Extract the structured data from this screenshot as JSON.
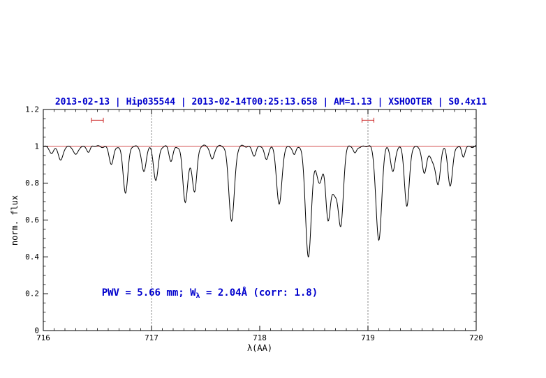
{
  "page": {
    "background": "#ffffff"
  },
  "chart_data": {
    "type": "line",
    "title": "2013-02-13 | Hip035544 | 2013-02-14T00:25:13.658 | AM=1.13 | XSHOOTER | S0.4x11",
    "title_color": "#0000cd",
    "xlabel": "λ(AA)",
    "ylabel": "norm. flux",
    "xlim": [
      716,
      720
    ],
    "ylim": [
      0,
      1.2
    ],
    "xticks": [
      "716",
      "717",
      "718",
      "719",
      "720"
    ],
    "yticks": [
      "0",
      "0.2",
      "0.4",
      "0.6",
      "0.8",
      "1",
      "1.2"
    ],
    "x_minor_step": 0.1,
    "y_minor_step": 0.05,
    "grid": false,
    "legend": "none",
    "line_color": "#000000",
    "continuum": {
      "level": 1.0,
      "color": "#cc3333"
    },
    "vlines": {
      "x": [
        717,
        719
      ],
      "style": "dotted",
      "color": "#333333"
    },
    "range_markers": [
      {
        "x_center": 716.5,
        "half_width": 0.055,
        "y": 1.142,
        "color": "#cc2222"
      },
      {
        "x_center": 719.0,
        "half_width": 0.055,
        "y": 1.142,
        "color": "#cc2222"
      }
    ],
    "annotation": {
      "text_prefix": "PWV = 5.66 mm; W",
      "text_sub": "λ",
      "text_suffix": " = 2.04Å (corr: 1.8)",
      "x": 716.54,
      "y": 0.19,
      "color": "#0000cd"
    },
    "continuum_wiggle": [
      [
        90,
        0.004,
        0
      ],
      [
        37,
        0.003,
        1
      ]
    ],
    "sample_step": 0.004,
    "absorption_lines": [
      {
        "c": 716.08,
        "d": 0.04,
        "s": 0.018
      },
      {
        "c": 716.16,
        "d": 0.08,
        "s": 0.02
      },
      {
        "c": 716.3,
        "d": 0.05,
        "s": 0.02
      },
      {
        "c": 716.42,
        "d": 0.03,
        "s": 0.015
      },
      {
        "c": 716.63,
        "d": 0.1,
        "s": 0.02
      },
      {
        "c": 716.76,
        "d": 0.25,
        "s": 0.022
      },
      {
        "c": 716.93,
        "d": 0.14,
        "s": 0.02
      },
      {
        "c": 717.04,
        "d": 0.18,
        "s": 0.022
      },
      {
        "c": 717.18,
        "d": 0.08,
        "s": 0.018
      },
      {
        "c": 717.31,
        "d": 0.28,
        "s": 0.022
      },
      {
        "c": 717.355,
        "d": 0.07,
        "s": 0.03
      },
      {
        "c": 717.4,
        "d": 0.22,
        "s": 0.02
      },
      {
        "c": 717.56,
        "d": 0.07,
        "s": 0.018
      },
      {
        "c": 717.74,
        "d": 0.4,
        "s": 0.026
      },
      {
        "c": 717.95,
        "d": 0.05,
        "s": 0.018
      },
      {
        "c": 718.06,
        "d": 0.07,
        "s": 0.018
      },
      {
        "c": 718.18,
        "d": 0.32,
        "s": 0.024
      },
      {
        "c": 718.32,
        "d": 0.05,
        "s": 0.015
      },
      {
        "c": 718.45,
        "d": 0.6,
        "s": 0.027
      },
      {
        "c": 718.55,
        "d": 0.2,
        "s": 0.03
      },
      {
        "c": 718.63,
        "d": 0.36,
        "s": 0.022
      },
      {
        "c": 718.69,
        "d": 0.25,
        "s": 0.03
      },
      {
        "c": 718.75,
        "d": 0.4,
        "s": 0.023
      },
      {
        "c": 718.88,
        "d": 0.04,
        "s": 0.015
      },
      {
        "c": 719.1,
        "d": 0.51,
        "s": 0.026
      },
      {
        "c": 719.23,
        "d": 0.14,
        "s": 0.02
      },
      {
        "c": 719.36,
        "d": 0.33,
        "s": 0.022
      },
      {
        "c": 719.52,
        "d": 0.15,
        "s": 0.02
      },
      {
        "c": 719.6,
        "d": 0.08,
        "s": 0.03
      },
      {
        "c": 719.65,
        "d": 0.19,
        "s": 0.02
      },
      {
        "c": 719.76,
        "d": 0.21,
        "s": 0.022
      },
      {
        "c": 719.88,
        "d": 0.06,
        "s": 0.015
      }
    ]
  }
}
